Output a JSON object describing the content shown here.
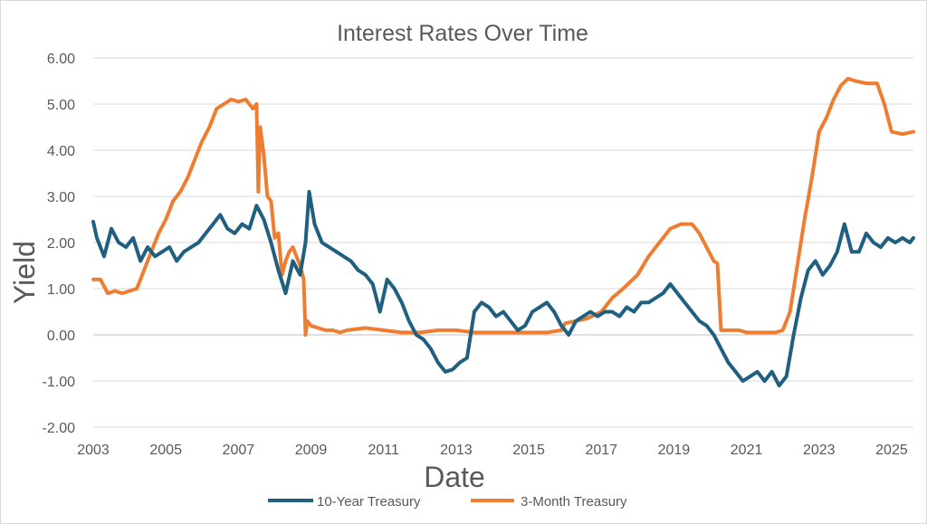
{
  "chart_data": {
    "type": "line",
    "title": "Interest Rates Over Time",
    "xlabel": "Date",
    "ylabel": "Yield",
    "xlim": [
      2003,
      2025.6
    ],
    "ylim": [
      -2,
      6
    ],
    "y_ticks": [
      -2,
      -1,
      0,
      1,
      2,
      3,
      4,
      5,
      6
    ],
    "y_tick_labels": [
      "-2.00",
      "-1.00",
      "0.00",
      "1.00",
      "2.00",
      "3.00",
      "4.00",
      "5.00",
      "6.00"
    ],
    "x_ticks": [
      2003,
      2005,
      2007,
      2009,
      2011,
      2013,
      2015,
      2017,
      2019,
      2021,
      2023,
      2025
    ],
    "x_tick_labels": [
      "2003",
      "2005",
      "2007",
      "2009",
      "2011",
      "2013",
      "2015",
      "2017",
      "2019",
      "2021",
      "2023",
      "2025"
    ],
    "grid": "horizontal",
    "legend": "bottom",
    "series": [
      {
        "name": "10-Year Treasury",
        "color": "#1f5f80",
        "x": [
          2003.0,
          2003.1,
          2003.3,
          2003.5,
          2003.7,
          2003.9,
          2004.1,
          2004.3,
          2004.5,
          2004.7,
          2004.9,
          2005.1,
          2005.3,
          2005.5,
          2005.7,
          2005.9,
          2006.1,
          2006.3,
          2006.5,
          2006.7,
          2006.9,
          2007.1,
          2007.3,
          2007.5,
          2007.7,
          2007.9,
          2008.1,
          2008.3,
          2008.5,
          2008.7,
          2008.85,
          2008.95,
          2009.1,
          2009.3,
          2009.5,
          2009.7,
          2009.9,
          2010.1,
          2010.3,
          2010.5,
          2010.7,
          2010.9,
          2011.1,
          2011.3,
          2011.5,
          2011.7,
          2011.9,
          2012.1,
          2012.3,
          2012.5,
          2012.7,
          2012.9,
          2013.1,
          2013.3,
          2013.5,
          2013.7,
          2013.9,
          2014.1,
          2014.3,
          2014.5,
          2014.7,
          2014.9,
          2015.1,
          2015.3,
          2015.5,
          2015.7,
          2015.9,
          2016.1,
          2016.3,
          2016.5,
          2016.7,
          2016.9,
          2017.1,
          2017.3,
          2017.5,
          2017.7,
          2017.9,
          2018.1,
          2018.3,
          2018.5,
          2018.7,
          2018.9,
          2019.1,
          2019.3,
          2019.5,
          2019.7,
          2019.9,
          2020.1,
          2020.3,
          2020.5,
          2020.7,
          2020.9,
          2021.1,
          2021.3,
          2021.5,
          2021.7,
          2021.9,
          2022.1,
          2022.3,
          2022.5,
          2022.7,
          2022.9,
          2023.1,
          2023.3,
          2023.5,
          2023.7,
          2023.9,
          2024.1,
          2024.3,
          2024.5,
          2024.7,
          2024.9,
          2025.1,
          2025.3,
          2025.5
        ],
        "values": [
          2.45,
          2.1,
          1.7,
          2.3,
          2.0,
          1.9,
          2.1,
          1.6,
          1.9,
          1.7,
          1.8,
          1.9,
          1.6,
          1.8,
          1.9,
          2.0,
          2.2,
          2.4,
          2.6,
          2.3,
          2.2,
          2.4,
          2.3,
          2.8,
          2.5,
          2.0,
          1.4,
          0.9,
          1.6,
          1.3,
          2.0,
          3.1,
          2.4,
          2.0,
          1.9,
          1.8,
          1.7,
          1.6,
          1.4,
          1.3,
          1.1,
          0.5,
          1.2,
          1.0,
          0.7,
          0.3,
          0.0,
          -0.1,
          -0.3,
          -0.6,
          -0.8,
          -0.75,
          -0.6,
          -0.5,
          0.5,
          0.7,
          0.6,
          0.4,
          0.5,
          0.3,
          0.1,
          0.2,
          0.5,
          0.6,
          0.7,
          0.5,
          0.2,
          0.0,
          0.3,
          0.4,
          0.5,
          0.4,
          0.5,
          0.5,
          0.4,
          0.6,
          0.5,
          0.7,
          0.7,
          0.8,
          0.9,
          1.1,
          0.9,
          0.7,
          0.5,
          0.3,
          0.2,
          0.0,
          -0.3,
          -0.6,
          -0.8,
          -1.0,
          -0.9,
          -0.8,
          -1.0,
          -0.8,
          -1.1,
          -0.9,
          0.0,
          0.8,
          1.4,
          1.6,
          1.3,
          1.5,
          1.8,
          2.4,
          1.8,
          1.8,
          2.2,
          2.0,
          1.9,
          2.1,
          2.0,
          2.1,
          2.0
        ],
        "x_end": 2025.6,
        "value_end": 2.1
      },
      {
        "name": "3-Month Treasury",
        "color": "#ee7d31",
        "x": [
          2003.0,
          2003.2,
          2003.4,
          2003.6,
          2003.8,
          2004.0,
          2004.2,
          2004.4,
          2004.6,
          2004.8,
          2005.0,
          2005.2,
          2005.4,
          2005.6,
          2005.8,
          2006.0,
          2006.2,
          2006.4,
          2006.6,
          2006.8,
          2007.0,
          2007.2,
          2007.4,
          2007.5,
          2007.55,
          2007.6,
          2007.7,
          2007.8,
          2007.9,
          2008.0,
          2008.1,
          2008.2,
          2008.3,
          2008.4,
          2008.5,
          2008.6,
          2008.7,
          2008.8,
          2008.85,
          2008.9,
          2009.0,
          2009.2,
          2009.4,
          2009.6,
          2009.8,
          2010.0,
          2010.5,
          2011.0,
          2011.5,
          2012.0,
          2012.5,
          2013.0,
          2013.5,
          2014.0,
          2014.5,
          2015.0,
          2015.5,
          2015.9,
          2016.0,
          2016.3,
          2016.6,
          2017.0,
          2017.3,
          2017.6,
          2018.0,
          2018.3,
          2018.6,
          2018.9,
          2019.2,
          2019.5,
          2019.7,
          2019.9,
          2020.1,
          2020.2,
          2020.3,
          2020.5,
          2020.8,
          2021.0,
          2021.4,
          2021.8,
          2022.0,
          2022.2,
          2022.4,
          2022.6,
          2022.8,
          2023.0,
          2023.2,
          2023.4,
          2023.6,
          2023.8,
          2024.0,
          2024.3,
          2024.6,
          2024.8,
          2025.0,
          2025.3,
          2025.6
        ],
        "values": [
          1.2,
          1.2,
          0.9,
          0.95,
          0.9,
          0.95,
          1.0,
          1.4,
          1.8,
          2.2,
          2.5,
          2.9,
          3.1,
          3.4,
          3.8,
          4.2,
          4.5,
          4.9,
          5.0,
          5.1,
          5.05,
          5.1,
          4.9,
          5.0,
          3.1,
          4.5,
          3.9,
          3.0,
          2.9,
          2.1,
          2.2,
          1.3,
          1.6,
          1.8,
          1.9,
          1.7,
          1.5,
          1.2,
          0.0,
          0.3,
          0.2,
          0.15,
          0.1,
          0.1,
          0.05,
          0.1,
          0.15,
          0.1,
          0.05,
          0.05,
          0.1,
          0.1,
          0.05,
          0.05,
          0.05,
          0.05,
          0.05,
          0.1,
          0.25,
          0.3,
          0.35,
          0.5,
          0.8,
          1.0,
          1.3,
          1.7,
          2.0,
          2.3,
          2.4,
          2.4,
          2.2,
          1.9,
          1.6,
          1.55,
          0.1,
          0.1,
          0.1,
          0.05,
          0.05,
          0.05,
          0.1,
          0.5,
          1.5,
          2.5,
          3.4,
          4.4,
          4.7,
          5.1,
          5.4,
          5.55,
          5.5,
          5.45,
          5.45,
          5.0,
          4.4,
          4.35,
          4.4
        ]
      }
    ]
  }
}
